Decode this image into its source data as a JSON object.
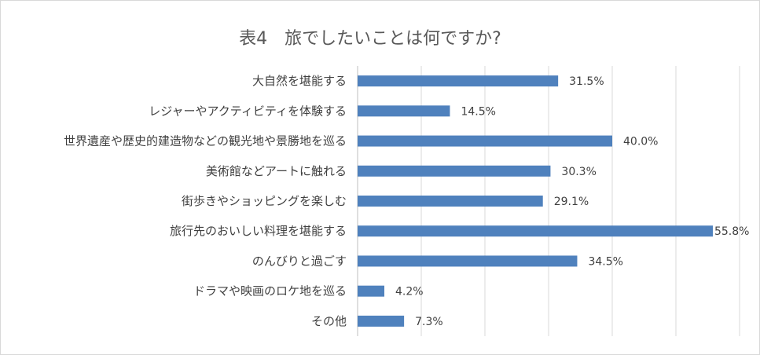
{
  "chart_data": {
    "type": "bar",
    "orientation": "horizontal",
    "title": "表4　旅でしたいことは何ですか?",
    "categories": [
      "大自然を堪能する",
      "レジャーやアクティビティを体験する",
      "世界遺産や歴史的建造物などの観光地や景勝地を巡る",
      "美術館などアートに触れる",
      "街歩きやショッピングを楽しむ",
      "旅行先のおいしい料理を堪能する",
      "のんびりと過ごす",
      "ドラマや映画のロケ地を巡る",
      "その他"
    ],
    "values": [
      31.5,
      14.5,
      40.0,
      30.3,
      29.1,
      55.8,
      34.5,
      4.2,
      7.3
    ],
    "value_labels": [
      "31.5%",
      "14.5%",
      "40.0%",
      "30.3%",
      "29.1%",
      "55.8%",
      "34.5%",
      "4.2%",
      "7.3%"
    ],
    "xlim": [
      0,
      60
    ],
    "grid": true,
    "bar_color": "#4f81bd",
    "grid_color": "#d9d9d9"
  }
}
